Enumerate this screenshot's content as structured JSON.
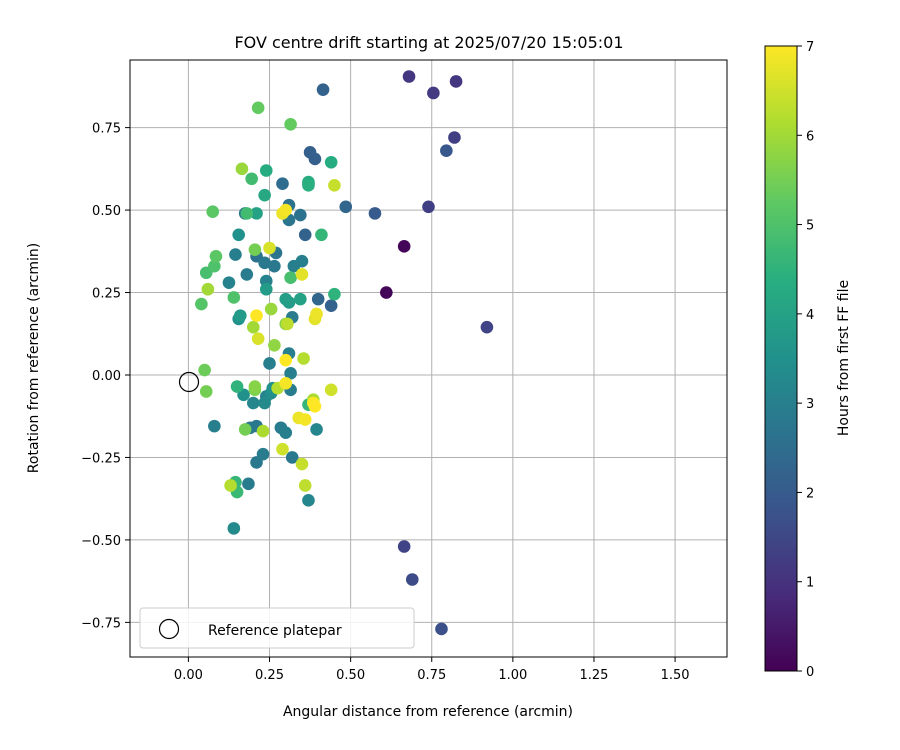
{
  "chart_data": {
    "type": "scatter",
    "title": "FOV centre drift starting at 2025/07/20 15:05:01",
    "xlabel": "Angular distance from reference (arcmin)",
    "ylabel": "Rotation from reference (arcmin)",
    "xlim": [
      -0.18,
      1.66
    ],
    "ylim": [
      -0.855,
      0.955
    ],
    "xticks": [
      0.0,
      0.25,
      0.5,
      0.75,
      1.0,
      1.25,
      1.5
    ],
    "xtick_labels": [
      "0.00",
      "0.25",
      "0.50",
      "0.75",
      "1.00",
      "1.25",
      "1.50"
    ],
    "yticks": [
      -0.75,
      -0.5,
      -0.25,
      0.0,
      0.25,
      0.5,
      0.75
    ],
    "ytick_labels": [
      "−0.75",
      "−0.50",
      "−0.25",
      "0.00",
      "0.25",
      "0.50",
      "0.75"
    ],
    "grid": true,
    "colormap": "viridis",
    "colorbar": {
      "label": "Hours from first FF file",
      "range": [
        0,
        7
      ],
      "ticks": [
        0,
        1,
        2,
        3,
        4,
        5,
        6,
        7
      ],
      "tick_labels": [
        "0",
        "1",
        "2",
        "3",
        "4",
        "5",
        "6",
        "7"
      ]
    },
    "reference_point": {
      "x": 0.0,
      "y": 0.0
    },
    "legend": {
      "placement": "lower-left",
      "entries": [
        "Reference platepar"
      ]
    },
    "points": [
      {
        "x": 0.61,
        "y": 0.25,
        "hours": 0.1
      },
      {
        "x": 0.665,
        "y": 0.39,
        "hours": 0.1
      },
      {
        "x": 0.68,
        "y": 0.905,
        "hours": 1.1
      },
      {
        "x": 0.825,
        "y": 0.89,
        "hours": 1.1
      },
      {
        "x": 0.755,
        "y": 0.855,
        "hours": 1.2
      },
      {
        "x": 0.82,
        "y": 0.72,
        "hours": 1.3
      },
      {
        "x": 0.74,
        "y": 0.51,
        "hours": 1.3
      },
      {
        "x": 0.92,
        "y": 0.145,
        "hours": 1.4
      },
      {
        "x": 0.665,
        "y": -0.52,
        "hours": 1.4
      },
      {
        "x": 0.69,
        "y": -0.62,
        "hours": 1.6
      },
      {
        "x": 0.78,
        "y": -0.77,
        "hours": 1.7
      },
      {
        "x": 0.795,
        "y": 0.68,
        "hours": 1.9
      },
      {
        "x": 0.575,
        "y": 0.49,
        "hours": 2.0
      },
      {
        "x": 0.415,
        "y": 0.865,
        "hours": 2.2
      },
      {
        "x": 0.39,
        "y": 0.655,
        "hours": 2.1
      },
      {
        "x": 0.375,
        "y": 0.675,
        "hours": 2.1
      },
      {
        "x": 0.485,
        "y": 0.51,
        "hours": 2.3
      },
      {
        "x": 0.44,
        "y": 0.21,
        "hours": 2.2
      },
      {
        "x": 0.36,
        "y": 0.425,
        "hours": 2.2
      },
      {
        "x": 0.4,
        "y": 0.23,
        "hours": 2.3
      },
      {
        "x": 0.29,
        "y": 0.58,
        "hours": 2.5
      },
      {
        "x": 0.37,
        "y": 0.58,
        "hours": 2.5
      },
      {
        "x": 0.31,
        "y": 0.515,
        "hours": 2.6
      },
      {
        "x": 0.345,
        "y": 0.485,
        "hours": 2.6
      },
      {
        "x": 0.31,
        "y": 0.47,
        "hours": 2.7
      },
      {
        "x": 0.175,
        "y": 0.49,
        "hours": 2.7
      },
      {
        "x": 0.21,
        "y": 0.36,
        "hours": 2.6
      },
      {
        "x": 0.235,
        "y": 0.34,
        "hours": 2.8
      },
      {
        "x": 0.265,
        "y": 0.33,
        "hours": 2.8
      },
      {
        "x": 0.27,
        "y": 0.37,
        "hours": 2.7
      },
      {
        "x": 0.325,
        "y": 0.33,
        "hours": 3.0
      },
      {
        "x": 0.35,
        "y": 0.345,
        "hours": 3.0
      },
      {
        "x": 0.18,
        "y": 0.305,
        "hours": 2.9
      },
      {
        "x": 0.145,
        "y": 0.365,
        "hours": 3.0
      },
      {
        "x": 0.24,
        "y": 0.285,
        "hours": 3.1
      },
      {
        "x": 0.125,
        "y": 0.28,
        "hours": 3.1
      },
      {
        "x": 0.32,
        "y": 0.175,
        "hours": 2.9
      },
      {
        "x": 0.31,
        "y": 0.065,
        "hours": 3.0
      },
      {
        "x": 0.25,
        "y": 0.035,
        "hours": 3.0
      },
      {
        "x": 0.315,
        "y": 0.005,
        "hours": 3.0
      },
      {
        "x": 0.315,
        "y": -0.045,
        "hours": 2.9
      },
      {
        "x": 0.19,
        "y": -0.16,
        "hours": 2.8
      },
      {
        "x": 0.21,
        "y": -0.155,
        "hours": 2.8
      },
      {
        "x": 0.285,
        "y": -0.16,
        "hours": 2.9
      },
      {
        "x": 0.3,
        "y": -0.175,
        "hours": 3.0
      },
      {
        "x": 0.08,
        "y": -0.155,
        "hours": 3.0
      },
      {
        "x": 0.395,
        "y": -0.165,
        "hours": 3.2
      },
      {
        "x": 0.32,
        "y": -0.25,
        "hours": 2.8
      },
      {
        "x": 0.21,
        "y": -0.265,
        "hours": 2.8
      },
      {
        "x": 0.23,
        "y": -0.24,
        "hours": 2.9
      },
      {
        "x": 0.185,
        "y": -0.33,
        "hours": 2.9
      },
      {
        "x": 0.37,
        "y": -0.38,
        "hours": 3.2
      },
      {
        "x": 0.14,
        "y": -0.465,
        "hours": 3.3
      },
      {
        "x": 0.24,
        "y": -0.065,
        "hours": 3.1
      },
      {
        "x": 0.2,
        "y": -0.085,
        "hours": 3.2
      },
      {
        "x": 0.235,
        "y": -0.085,
        "hours": 3.3
      },
      {
        "x": 0.255,
        "y": -0.055,
        "hours": 3.4
      },
      {
        "x": 0.17,
        "y": -0.06,
        "hours": 3.5
      },
      {
        "x": 0.26,
        "y": -0.04,
        "hours": 3.5
      },
      {
        "x": 0.155,
        "y": 0.425,
        "hours": 3.5
      },
      {
        "x": 0.155,
        "y": 0.17,
        "hours": 3.5
      },
      {
        "x": 0.16,
        "y": 0.18,
        "hours": 3.8
      },
      {
        "x": 0.24,
        "y": 0.26,
        "hours": 3.8
      },
      {
        "x": 0.31,
        "y": 0.22,
        "hours": 3.8
      },
      {
        "x": 0.3,
        "y": 0.23,
        "hours": 3.9
      },
      {
        "x": 0.345,
        "y": 0.23,
        "hours": 4.0
      },
      {
        "x": 0.21,
        "y": 0.49,
        "hours": 4.0
      },
      {
        "x": 0.235,
        "y": 0.545,
        "hours": 4.2
      },
      {
        "x": 0.24,
        "y": 0.62,
        "hours": 4.3
      },
      {
        "x": 0.44,
        "y": 0.645,
        "hours": 4.3
      },
      {
        "x": 0.37,
        "y": 0.585,
        "hours": 4.3
      },
      {
        "x": 0.37,
        "y": 0.575,
        "hours": 4.4
      },
      {
        "x": 0.45,
        "y": 0.245,
        "hours": 4.5
      },
      {
        "x": 0.41,
        "y": 0.425,
        "hours": 4.6
      },
      {
        "x": 0.15,
        "y": -0.035,
        "hours": 4.5
      },
      {
        "x": 0.37,
        "y": -0.09,
        "hours": 4.6
      },
      {
        "x": 0.145,
        "y": -0.325,
        "hours": 4.6
      },
      {
        "x": 0.15,
        "y": -0.355,
        "hours": 4.7
      },
      {
        "x": 0.195,
        "y": 0.595,
        "hours": 4.8
      },
      {
        "x": 0.18,
        "y": 0.49,
        "hours": 4.8
      },
      {
        "x": 0.315,
        "y": 0.295,
        "hours": 4.9
      },
      {
        "x": 0.055,
        "y": 0.31,
        "hours": 4.9
      },
      {
        "x": 0.08,
        "y": 0.33,
        "hours": 5.0
      },
      {
        "x": 0.14,
        "y": 0.235,
        "hours": 5.0
      },
      {
        "x": 0.04,
        "y": 0.215,
        "hours": 5.1
      },
      {
        "x": 0.085,
        "y": 0.36,
        "hours": 5.2
      },
      {
        "x": 0.075,
        "y": 0.495,
        "hours": 5.2
      },
      {
        "x": 0.215,
        "y": 0.81,
        "hours": 5.3
      },
      {
        "x": 0.315,
        "y": 0.76,
        "hours": 5.3
      },
      {
        "x": 0.205,
        "y": 0.38,
        "hours": 5.5
      },
      {
        "x": 0.05,
        "y": 0.015,
        "hours": 5.4
      },
      {
        "x": 0.055,
        "y": -0.05,
        "hours": 5.5
      },
      {
        "x": 0.175,
        "y": -0.165,
        "hours": 5.5
      },
      {
        "x": 0.205,
        "y": -0.045,
        "hours": 5.6
      },
      {
        "x": 0.205,
        "y": -0.035,
        "hours": 5.7
      },
      {
        "x": 0.3,
        "y": 0.155,
        "hours": 5.7
      },
      {
        "x": 0.265,
        "y": 0.09,
        "hours": 5.8
      },
      {
        "x": 0.255,
        "y": 0.2,
        "hours": 5.9
      },
      {
        "x": 0.165,
        "y": 0.625,
        "hours": 5.9
      },
      {
        "x": 0.06,
        "y": 0.26,
        "hours": 6.0
      },
      {
        "x": 0.2,
        "y": 0.145,
        "hours": 6.0
      },
      {
        "x": 0.23,
        "y": -0.17,
        "hours": 6.1
      },
      {
        "x": 0.275,
        "y": -0.04,
        "hours": 6.2
      },
      {
        "x": 0.305,
        "y": 0.155,
        "hours": 6.3
      },
      {
        "x": 0.385,
        "y": -0.075,
        "hours": 6.1
      },
      {
        "x": 0.355,
        "y": 0.05,
        "hours": 6.2
      },
      {
        "x": 0.45,
        "y": 0.575,
        "hours": 6.4
      },
      {
        "x": 0.44,
        "y": -0.045,
        "hours": 6.5
      },
      {
        "x": 0.13,
        "y": -0.335,
        "hours": 6.2
      },
      {
        "x": 0.36,
        "y": -0.335,
        "hours": 6.3
      },
      {
        "x": 0.35,
        "y": -0.27,
        "hours": 6.4
      },
      {
        "x": 0.29,
        "y": -0.225,
        "hours": 6.5
      },
      {
        "x": 0.215,
        "y": 0.11,
        "hours": 6.6
      },
      {
        "x": 0.25,
        "y": 0.385,
        "hours": 6.6
      },
      {
        "x": 0.35,
        "y": 0.305,
        "hours": 6.7
      },
      {
        "x": 0.39,
        "y": 0.17,
        "hours": 6.7
      },
      {
        "x": 0.395,
        "y": 0.185,
        "hours": 6.8
      },
      {
        "x": 0.29,
        "y": 0.49,
        "hours": 6.8
      },
      {
        "x": 0.34,
        "y": -0.13,
        "hours": 6.8
      },
      {
        "x": 0.36,
        "y": -0.135,
        "hours": 6.9
      },
      {
        "x": 0.3,
        "y": -0.025,
        "hours": 6.9
      },
      {
        "x": 0.385,
        "y": -0.085,
        "hours": 7.0
      },
      {
        "x": 0.39,
        "y": -0.095,
        "hours": 7.0
      },
      {
        "x": 0.3,
        "y": 0.045,
        "hours": 7.0
      },
      {
        "x": 0.21,
        "y": 0.18,
        "hours": 7.0
      },
      {
        "x": 0.3,
        "y": 0.5,
        "hours": 6.9
      }
    ]
  }
}
